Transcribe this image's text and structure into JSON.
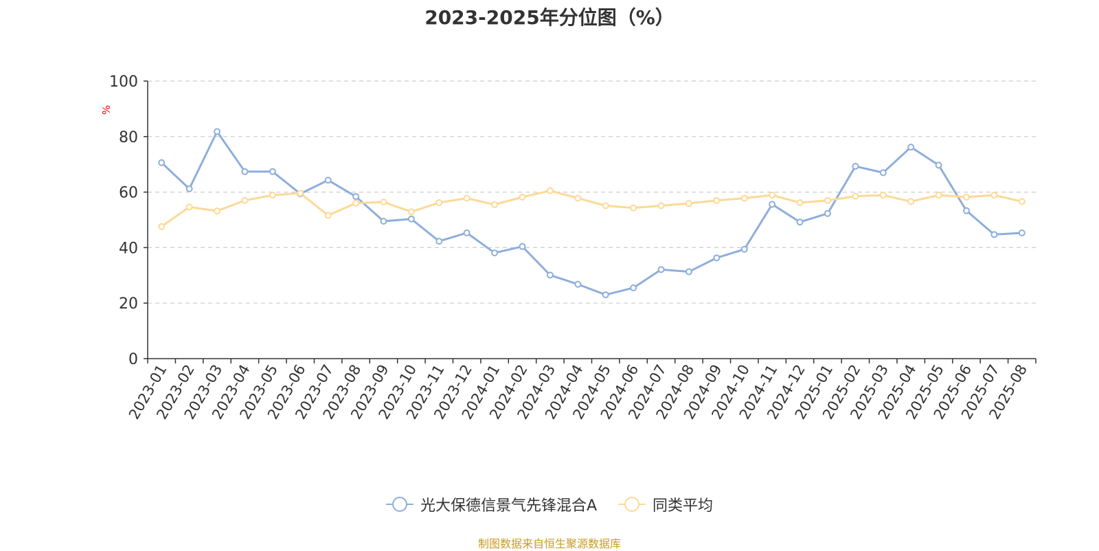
{
  "title": "2023-2025年分位图（%）",
  "source": "制图数据来自恒生聚源数据库",
  "colors": {
    "series1": "#8eaedb",
    "series2": "#fdd995",
    "axis": "#333333",
    "grid": "#cccccc",
    "unit": "#ff0000",
    "source": "#c69b28"
  },
  "chart_data": {
    "type": "line",
    "title": "2023-2025年分位图（%）",
    "xlabel": "",
    "ylabel": "%",
    "ylim": [
      0,
      100
    ],
    "yticks": [
      0,
      20,
      40,
      60,
      80,
      100
    ],
    "grid": true,
    "legend_position": "bottom",
    "categories": [
      "2023-01",
      "2023-02",
      "2023-03",
      "2023-04",
      "2023-05",
      "2023-06",
      "2023-07",
      "2023-08",
      "2023-09",
      "2023-10",
      "2023-11",
      "2023-12",
      "2024-01",
      "2024-02",
      "2024-03",
      "2024-04",
      "2024-05",
      "2024-06",
      "2024-07",
      "2024-08",
      "2024-09",
      "2024-10",
      "2024-11",
      "2024-12",
      "2025-01",
      "2025-02",
      "2025-03",
      "2025-04",
      "2025-05",
      "2025-06",
      "2025-07",
      "2025-08"
    ],
    "series": [
      {
        "name": "光大保德信景气先锋混合A",
        "color": "#8eaedb",
        "values": [
          70.6,
          61.2,
          81.8,
          67.4,
          67.4,
          59.4,
          64.3,
          58.4,
          49.5,
          50.3,
          42.3,
          45.3,
          38.1,
          40.4,
          30.1,
          26.8,
          23.0,
          25.5,
          32.1,
          31.3,
          36.3,
          39.4,
          55.6,
          49.2,
          52.3,
          69.3,
          67.0,
          76.2,
          69.7,
          53.3,
          44.7,
          45.3
        ]
      },
      {
        "name": "同类平均",
        "color": "#fdd995",
        "values": [
          47.6,
          54.6,
          53.2,
          57.0,
          58.9,
          59.6,
          51.6,
          56.0,
          56.4,
          52.9,
          56.2,
          57.8,
          55.5,
          58.2,
          60.5,
          57.8,
          55.1,
          54.3,
          55.1,
          55.9,
          57.0,
          57.8,
          58.9,
          56.2,
          57.0,
          58.5,
          58.9,
          56.6,
          58.9,
          58.2,
          58.9,
          56.6
        ]
      }
    ]
  }
}
